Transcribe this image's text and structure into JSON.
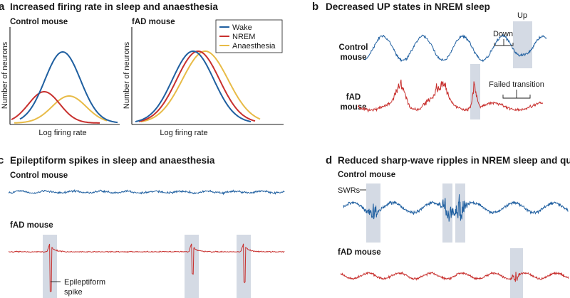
{
  "colors": {
    "wake": "#1f5fa0",
    "nrem": "#c8302e",
    "anaesthesia": "#e8bb47",
    "shade": "#ccd4df",
    "text": "#1a1a1a"
  },
  "panel_a": {
    "letter": "a",
    "title": "Increased firing rate in sleep and anaesthesia",
    "control_label": "Control mouse",
    "fad_label": "fAD mouse",
    "y_axis_label": "Number of neurons",
    "x_axis_label": "Log firing rate",
    "legend": [
      "Wake",
      "NREM",
      "Anaesthesia"
    ],
    "curve_icons": [
      "wake-curve",
      "nrem-curve",
      "anaesthesia-curve"
    ]
  },
  "panel_b": {
    "letter": "b",
    "title": "Decreased UP states in NREM sleep",
    "control_label_1": "Control",
    "control_label_2": "mouse",
    "fad_label_1": "fAD",
    "fad_label_2": "mouse",
    "up_label": "Up",
    "down_label": "Down",
    "failed_label": "Failed transition"
  },
  "panel_c": {
    "letter": "c",
    "title": "Epileptiform spikes in sleep and anaesthesia",
    "control_label": "Control mouse",
    "fad_label": "fAD mouse",
    "spike_label_1": "Epileptiform",
    "spike_label_2": "spike"
  },
  "panel_d": {
    "letter": "d",
    "title": "Reduced sharp-wave ripples in NREM sleep and quiet wake",
    "control_label": "Control mouse",
    "fad_label": "fAD mouse",
    "swr_label": "SWRs"
  }
}
